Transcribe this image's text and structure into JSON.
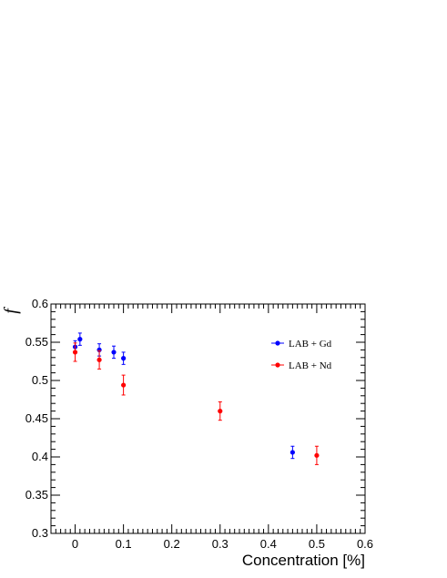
{
  "chart_data": {
    "type": "scatter",
    "xlabel": "Concentration [%]",
    "ylabel": "f",
    "xlim": [
      -0.05,
      0.6
    ],
    "ylim": [
      0.3,
      0.6
    ],
    "x_ticks": [
      "0",
      "0.1",
      "0.2",
      "0.3",
      "0.4",
      "0.5",
      "0.6"
    ],
    "y_ticks": [
      "0.3",
      "0.35",
      "0.4",
      "0.45",
      "0.5",
      "0.55",
      "0.6"
    ],
    "grid": false,
    "legend_position": "top-right",
    "series": [
      {
        "name": "LAB + Gd",
        "color": "#0000ff",
        "points": [
          {
            "x": 0.0,
            "y": 0.544,
            "err": 0.008
          },
          {
            "x": 0.01,
            "y": 0.554,
            "err": 0.008
          },
          {
            "x": 0.05,
            "y": 0.54,
            "err": 0.008
          },
          {
            "x": 0.08,
            "y": 0.537,
            "err": 0.008
          },
          {
            "x": 0.1,
            "y": 0.529,
            "err": 0.008
          },
          {
            "x": 0.45,
            "y": 0.406,
            "err": 0.008
          }
        ]
      },
      {
        "name": "LAB + Nd",
        "color": "#ff0000",
        "points": [
          {
            "x": 0.0,
            "y": 0.537,
            "err": 0.012
          },
          {
            "x": 0.05,
            "y": 0.527,
            "err": 0.012
          },
          {
            "x": 0.1,
            "y": 0.494,
            "err": 0.013
          },
          {
            "x": 0.3,
            "y": 0.46,
            "err": 0.012
          },
          {
            "x": 0.5,
            "y": 0.402,
            "err": 0.012
          }
        ]
      }
    ]
  }
}
